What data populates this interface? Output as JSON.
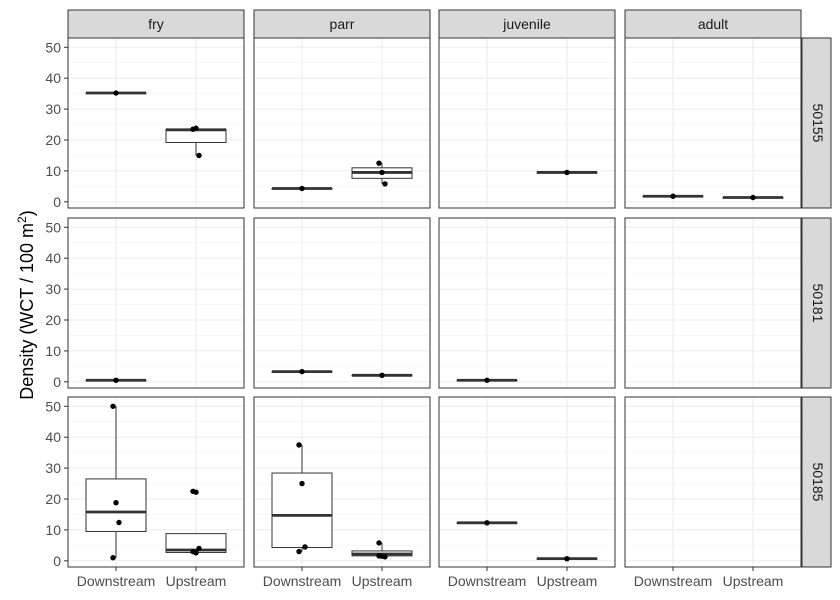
{
  "chart_data": {
    "type": "boxplot",
    "ylabel": "Density (WCT / 100 m",
    "ylabel_sup": "2",
    "ylabel_end": ")",
    "categories": [
      "Downstream",
      "Upstream"
    ],
    "col_facets": [
      "fry",
      "parr",
      "juvenile",
      "adult"
    ],
    "row_facets": [
      "50155",
      "50181",
      "50185"
    ],
    "ylim": [
      -2,
      53
    ],
    "yticks": [
      0,
      10,
      20,
      30,
      40,
      50
    ],
    "grid": true,
    "panels": [
      {
        "row": "50155",
        "col": "fry",
        "groups": [
          {
            "x": "Downstream",
            "q1": 35.2,
            "median": 35.2,
            "q3": 35.2,
            "whisker_low": 35.2,
            "whisker_high": 35.2,
            "points": [
              35.2
            ]
          },
          {
            "x": "Upstream",
            "q1": 19.2,
            "median": 23.3,
            "q3": 23.5,
            "whisker_low": 15.0,
            "whisker_high": 23.8,
            "points": [
              23.5,
              23.8,
              15.0
            ]
          }
        ]
      },
      {
        "row": "50155",
        "col": "parr",
        "groups": [
          {
            "x": "Downstream",
            "q1": 4.3,
            "median": 4.3,
            "q3": 4.3,
            "whisker_low": 4.3,
            "whisker_high": 4.3,
            "points": [
              4.3
            ]
          },
          {
            "x": "Upstream",
            "q1": 7.6,
            "median": 9.5,
            "q3": 11.0,
            "whisker_low": 5.8,
            "whisker_high": 12.5,
            "points": [
              12.5,
              9.5,
              5.8
            ]
          }
        ]
      },
      {
        "row": "50155",
        "col": "juvenile",
        "groups": [
          {
            "x": "Upstream",
            "q1": 9.5,
            "median": 9.5,
            "q3": 9.5,
            "whisker_low": 9.5,
            "whisker_high": 9.5,
            "points": [
              9.5
            ]
          }
        ]
      },
      {
        "row": "50155",
        "col": "adult",
        "groups": [
          {
            "x": "Downstream",
            "q1": 1.8,
            "median": 1.8,
            "q3": 1.8,
            "whisker_low": 1.8,
            "whisker_high": 1.8,
            "points": [
              1.8
            ]
          },
          {
            "x": "Upstream",
            "q1": 1.4,
            "median": 1.4,
            "q3": 1.4,
            "whisker_low": 1.4,
            "whisker_high": 1.4,
            "points": [
              1.4
            ]
          }
        ]
      },
      {
        "row": "50181",
        "col": "fry",
        "groups": [
          {
            "x": "Downstream",
            "q1": 0.5,
            "median": 0.5,
            "q3": 0.5,
            "whisker_low": 0.5,
            "whisker_high": 0.5,
            "points": [
              0.5
            ]
          }
        ]
      },
      {
        "row": "50181",
        "col": "parr",
        "groups": [
          {
            "x": "Downstream",
            "q1": 3.3,
            "median": 3.3,
            "q3": 3.3,
            "whisker_low": 3.3,
            "whisker_high": 3.3,
            "points": [
              3.3
            ]
          },
          {
            "x": "Upstream",
            "q1": 2.1,
            "median": 2.1,
            "q3": 2.1,
            "whisker_low": 2.1,
            "whisker_high": 2.1,
            "points": [
              2.1
            ]
          }
        ]
      },
      {
        "row": "50181",
        "col": "juvenile",
        "groups": [
          {
            "x": "Downstream",
            "q1": 0.5,
            "median": 0.5,
            "q3": 0.5,
            "whisker_low": 0.5,
            "whisker_high": 0.5,
            "points": [
              0.5
            ]
          }
        ]
      },
      {
        "row": "50181",
        "col": "adult",
        "groups": []
      },
      {
        "row": "50185",
        "col": "fry",
        "groups": [
          {
            "x": "Downstream",
            "q1": 9.5,
            "median": 15.8,
            "q3": 26.5,
            "whisker_low": 1.0,
            "whisker_high": 50.0,
            "points": [
              50.0,
              18.8,
              12.4,
              1.0
            ]
          },
          {
            "x": "Upstream",
            "q1": 2.7,
            "median": 3.5,
            "q3": 8.8,
            "whisker_low": 2.5,
            "whisker_high": 8.8,
            "points": [
              22.5,
              22.2,
              4.0,
              3.0,
              2.6
            ]
          }
        ]
      },
      {
        "row": "50185",
        "col": "parr",
        "groups": [
          {
            "x": "Downstream",
            "q1": 4.3,
            "median": 14.7,
            "q3": 28.4,
            "whisker_low": 3.0,
            "whisker_high": 37.5,
            "points": [
              37.5,
              25.0,
              4.5,
              3.0
            ]
          },
          {
            "x": "Upstream",
            "q1": 1.6,
            "median": 2.2,
            "q3": 3.2,
            "whisker_low": 1.3,
            "whisker_high": 5.8,
            "points": [
              5.8,
              1.5,
              1.3,
              1.6
            ]
          }
        ]
      },
      {
        "row": "50185",
        "col": "juvenile",
        "groups": [
          {
            "x": "Downstream",
            "q1": 12.3,
            "median": 12.3,
            "q3": 12.3,
            "whisker_low": 12.3,
            "whisker_high": 12.3,
            "points": [
              12.3
            ]
          },
          {
            "x": "Upstream",
            "q1": 0.7,
            "median": 0.7,
            "q3": 0.7,
            "whisker_low": 0.7,
            "whisker_high": 0.7,
            "points": [
              0.7
            ]
          }
        ]
      },
      {
        "row": "50185",
        "col": "adult",
        "groups": []
      }
    ]
  }
}
